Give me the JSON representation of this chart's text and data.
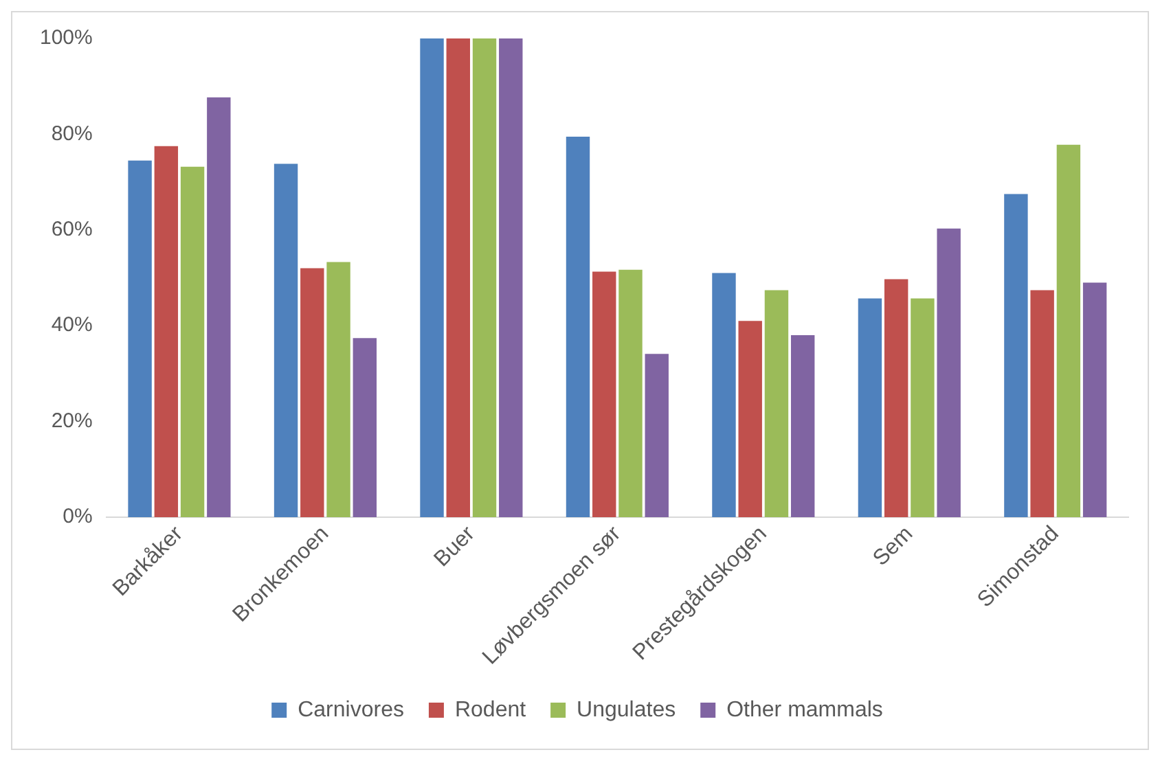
{
  "chart_data": {
    "type": "bar",
    "categories": [
      "Barkåker",
      "Bronkemoen",
      "Buer",
      "Løvbergsmoen sør",
      "Prestegårdskogen",
      "Sem",
      "Simonstad"
    ],
    "series": [
      {
        "name": "Carnivores",
        "color": "#4f81bd",
        "values": [
          74.5,
          73.8,
          100,
          79.5,
          51,
          45.7,
          67.5
        ]
      },
      {
        "name": "Rodent",
        "color": "#c0504d",
        "values": [
          77.5,
          52,
          100,
          51.3,
          41,
          49.7,
          47.4
        ]
      },
      {
        "name": "Ungulates",
        "color": "#9bbb59",
        "values": [
          73.2,
          53.3,
          100,
          51.7,
          47.4,
          45.7,
          77.8
        ]
      },
      {
        "name": "Other mammals",
        "color": "#8064a2",
        "values": [
          87.7,
          37.4,
          100,
          34.1,
          38,
          60.3,
          49
        ]
      }
    ],
    "ylim": [
      0,
      100
    ],
    "yticks": [
      {
        "value": 0,
        "label": "0%"
      },
      {
        "value": 20,
        "label": "20%"
      },
      {
        "value": 40,
        "label": "40%"
      },
      {
        "value": 60,
        "label": "60%"
      },
      {
        "value": 80,
        "label": "80%"
      },
      {
        "value": 100,
        "label": "100%"
      }
    ],
    "grid": false,
    "legend": "bottom"
  }
}
